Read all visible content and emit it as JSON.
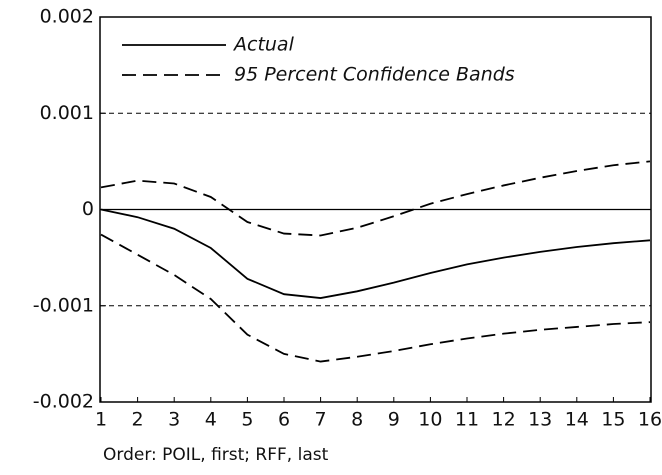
{
  "chart_data": {
    "type": "line",
    "x": [
      1,
      2,
      3,
      4,
      5,
      6,
      7,
      8,
      9,
      10,
      11,
      12,
      13,
      14,
      15,
      16
    ],
    "xlim": [
      1,
      16
    ],
    "xticks": [
      1,
      2,
      3,
      4,
      5,
      6,
      7,
      8,
      9,
      10,
      11,
      12,
      13,
      14,
      15,
      16
    ],
    "ylim": [
      -0.002,
      0.002
    ],
    "yticks": [
      -0.002,
      -0.001,
      0,
      0.001,
      0.002
    ],
    "grid": true,
    "grid_style": "dashed",
    "zero_line": true,
    "legend": "upper left",
    "series": [
      {
        "name": "Actual",
        "color": "#000000",
        "dash": "solid",
        "values": [
          0,
          -8e-05,
          -0.0002,
          -0.0004,
          -0.00072,
          -0.00088,
          -0.00092,
          -0.00085,
          -0.00076,
          -0.00066,
          -0.00057,
          -0.0005,
          -0.00044,
          -0.00039,
          -0.00035,
          -0.00032
        ]
      },
      {
        "name": "95 Percent Confidence Bands",
        "color": "#000000",
        "dash": "dashed",
        "values": [
          0.00023,
          0.0003,
          0.00027,
          0.00013,
          -0.00013,
          -0.00025,
          -0.00027,
          -0.00019,
          -7e-05,
          6e-05,
          0.00016,
          0.00025,
          0.00033,
          0.0004,
          0.00046,
          0.0005
        ]
      },
      {
        "color": "#000000",
        "dash": "dashed",
        "values": [
          -0.00026,
          -0.00047,
          -0.00068,
          -0.00093,
          -0.0013,
          -0.0015,
          -0.00158,
          -0.00153,
          -0.00147,
          -0.0014,
          -0.00134,
          -0.00129,
          -0.00125,
          -0.00122,
          -0.00119,
          -0.00117
        ]
      }
    ],
    "note": "Order:  POIL, first; RFF, last"
  }
}
